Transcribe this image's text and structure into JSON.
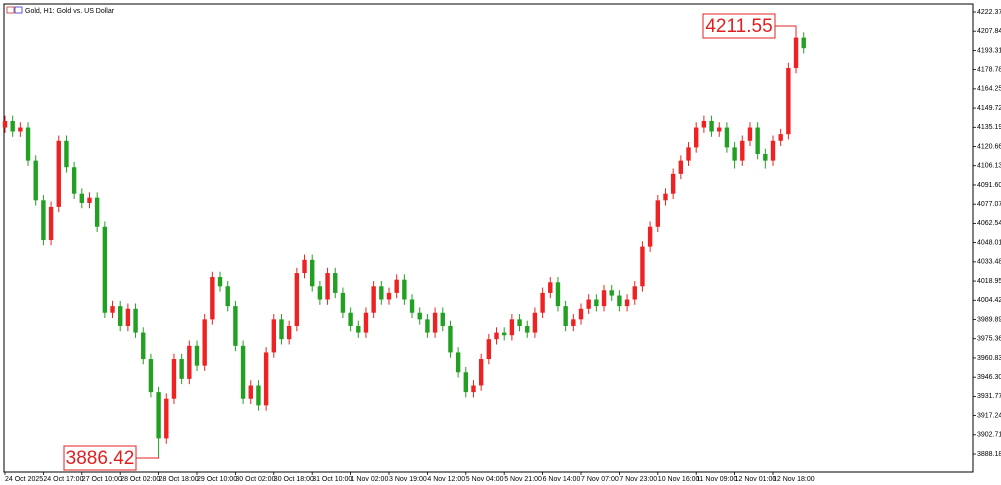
{
  "chart_data": {
    "type": "candlestick",
    "title": "Gold, H1: Gold vs. US Dollar",
    "categories": [
      "24 Oct 2025",
      null,
      null,
      null,
      null,
      "24 Oct 17:00",
      null,
      null,
      null,
      null,
      "27 Oct 10:00",
      null,
      null,
      null,
      null,
      "28 Oct 02:00",
      null,
      null,
      null,
      null,
      "28 Oct 18:00",
      null,
      null,
      null,
      null,
      "29 Oct 10:00",
      null,
      null,
      null,
      null,
      "30 Oct 02:00",
      null,
      null,
      null,
      null,
      "30 Oct 18:00",
      null,
      null,
      null,
      null,
      "31 Oct 10:00",
      null,
      null,
      null,
      null,
      "1 Nov 02:00",
      null,
      null,
      null,
      null,
      "3 Nov 19:00",
      null,
      null,
      null,
      null,
      "4 Nov 12:00",
      null,
      null,
      null,
      null,
      "5 Nov 04:00",
      null,
      null,
      null,
      null,
      "5 Nov 21:00",
      null,
      null,
      null,
      null,
      "6 Nov 14:00",
      null,
      null,
      null,
      null,
      "7 Nov 07:00",
      null,
      null,
      null,
      null,
      "7 Nov 23:00",
      null,
      null,
      null,
      null,
      "10 Nov 16:00",
      null,
      null,
      null,
      null,
      "11 Nov 09:00",
      null,
      null,
      null,
      null,
      "12 Nov 01:00",
      null,
      null,
      null,
      null,
      "12 Nov 18:00",
      null,
      null,
      null,
      null
    ],
    "open": [
      4135,
      4140,
      4132,
      4135,
      4110,
      4080,
      4050,
      4075,
      4125,
      4105,
      4085,
      4078,
      4082,
      4060,
      3995,
      4000,
      3985,
      3998,
      3980,
      3960,
      3935,
      3900,
      3930,
      3960,
      3945,
      3970,
      3955,
      3990,
      4022,
      4015,
      4000,
      3970,
      3930,
      3940,
      3925,
      3965,
      3990,
      3975,
      3985,
      4025,
      4035,
      4015,
      4005,
      4025,
      4010,
      3995,
      3985,
      3980,
      3995,
      4015,
      4005,
      4010,
      4020,
      4005,
      3995,
      3990,
      3980,
      3995,
      3985,
      3965,
      3950,
      3935,
      3940,
      3960,
      3975,
      3980,
      3978,
      3990,
      3985,
      3980,
      3995,
      4010,
      4018,
      4000,
      3985,
      3990,
      3998,
      4005,
      4000,
      4012,
      4008,
      4000,
      4005,
      4015,
      4045,
      4060,
      4080,
      4085,
      4100,
      4110,
      4120,
      4135,
      4140,
      4132,
      4135,
      4120,
      4110,
      4125,
      4135,
      4115,
      4110,
      4125,
      4130,
      4180,
      4203
    ],
    "high": [
      4144,
      4144,
      4139,
      4139,
      4114,
      4084,
      4079,
      4129,
      4129,
      4109,
      4089,
      4086,
      4086,
      4064,
      4004,
      4004,
      4002,
      4002,
      3984,
      3964,
      3939,
      3934,
      3964,
      3964,
      3974,
      3974,
      3994,
      4026,
      4026,
      4019,
      4004,
      3974,
      3944,
      3944,
      3969,
      3994,
      3994,
      3989,
      4029,
      4039,
      4039,
      4019,
      4029,
      4029,
      4014,
      3999,
      3989,
      3999,
      4019,
      4019,
      4014,
      4024,
      4024,
      4009,
      3999,
      3994,
      3999,
      3999,
      3989,
      3969,
      3954,
      3944,
      3964,
      3979,
      3984,
      3984,
      3994,
      3994,
      3989,
      3999,
      4014,
      4022,
      4022,
      4004,
      3994,
      4002,
      4009,
      4009,
      4016,
      4016,
      4012,
      4009,
      4019,
      4049,
      4064,
      4084,
      4089,
      4104,
      4114,
      4124,
      4139,
      4144,
      4144,
      4139,
      4139,
      4124,
      4129,
      4139,
      4139,
      4119,
      4129,
      4134,
      4184,
      4211.55,
      4207
    ],
    "low": [
      4131,
      4128,
      4128,
      4106,
      4076,
      4046,
      4046,
      4071,
      4101,
      4081,
      4074,
      4074,
      4056,
      3991,
      3991,
      3981,
      3981,
      3976,
      3956,
      3931,
      3886.42,
      3896,
      3926,
      3941,
      3941,
      3951,
      3951,
      3986,
      4011,
      3996,
      3966,
      3926,
      3926,
      3921,
      3921,
      3961,
      3971,
      3971,
      3981,
      4021,
      4011,
      4001,
      4001,
      4006,
      3991,
      3981,
      3976,
      3976,
      3991,
      4001,
      4001,
      4006,
      4001,
      3991,
      3986,
      3976,
      3976,
      3981,
      3961,
      3946,
      3931,
      3931,
      3936,
      3956,
      3971,
      3974,
      3974,
      3981,
      3976,
      3976,
      3991,
      4006,
      3996,
      3981,
      3981,
      3986,
      3994,
      3996,
      3996,
      4004,
      3996,
      3996,
      4001,
      4011,
      4041,
      4056,
      4076,
      4081,
      4096,
      4106,
      4116,
      4131,
      4128,
      4128,
      4116,
      4104,
      4106,
      4121,
      4111,
      4104,
      4106,
      4121,
      4126,
      4176,
      4191
    ],
    "close": [
      4140,
      4132,
      4135,
      4110,
      4080,
      4050,
      4075,
      4125,
      4105,
      4085,
      4078,
      4082,
      4060,
      3995,
      4000,
      3985,
      3998,
      3980,
      3960,
      3935,
      3900,
      3930,
      3960,
      3945,
      3970,
      3955,
      3990,
      4022,
      4015,
      4000,
      3970,
      3930,
      3940,
      3925,
      3965,
      3990,
      3975,
      3985,
      4025,
      4035,
      4015,
      4005,
      4025,
      4010,
      3995,
      3985,
      3980,
      3995,
      4015,
      4005,
      4010,
      4020,
      4005,
      3995,
      3990,
      3980,
      3995,
      3985,
      3965,
      3950,
      3935,
      3940,
      3960,
      3975,
      3980,
      3978,
      3990,
      3985,
      3980,
      3995,
      4010,
      4018,
      4000,
      3985,
      3990,
      3998,
      4005,
      4000,
      4012,
      4008,
      4000,
      4005,
      4015,
      4045,
      4060,
      4080,
      4085,
      4100,
      4110,
      4120,
      4135,
      4140,
      4132,
      4135,
      4120,
      4110,
      4125,
      4135,
      4115,
      4110,
      4125,
      4130,
      4180,
      4203,
      4195
    ],
    "up_color": "#ee2222",
    "down_color": "#22a022",
    "ylim": [
      3874.6,
      4228.4
    ],
    "yticks": [
      4222.37,
      4207.84,
      4193.31,
      4178.78,
      4164.25,
      4149.72,
      4135.19,
      4120.66,
      4106.13,
      {
        "value": 4091.6,
        "label": "4091.60"
      },
      4077.07,
      4062.54,
      4048.01,
      4033.48,
      4018.95,
      4004.42,
      3989.89,
      3975.36,
      3960.83,
      {
        "value": 3946.3,
        "label": "3946.30"
      },
      3931.77,
      3917.24,
      3902.71,
      3888.18
    ],
    "annotations": [
      4211.55,
      3886.42
    ]
  }
}
